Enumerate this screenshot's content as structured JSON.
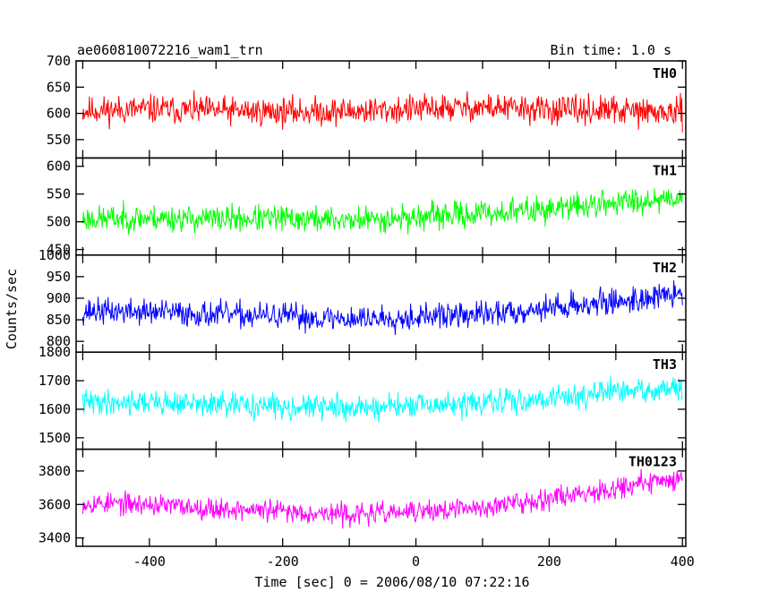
{
  "chart_data": {
    "type": "line",
    "title": "ae060810072216_wam1_trn",
    "bin_time": "Bin time: 1.0 s",
    "ylabel": "Counts/sec",
    "xlabel": "Time [sec] 0 = 2006/08/10 07:22:16",
    "xlim": [
      -510,
      405
    ],
    "x_ticks": [
      -400,
      -200,
      0,
      200,
      400
    ],
    "x_step": 1,
    "grid": false,
    "panels": [
      {
        "name": "TH0",
        "color": "#ff0000",
        "ylim": [
          515,
          700
        ],
        "y_ticks": [
          550,
          600,
          650,
          700
        ],
        "x_start": -500,
        "x_end": 400,
        "anchors_x": [
          -500,
          -400,
          -300,
          -200,
          -100,
          0,
          100,
          200,
          300,
          400
        ],
        "anchors_y": [
          605,
          608,
          605,
          603,
          604,
          608,
          612,
          606,
          605,
          600
        ],
        "noise": 25,
        "seed": 11
      },
      {
        "name": "TH1",
        "color": "#00ff00",
        "ylim": [
          440,
          615
        ],
        "y_ticks": [
          450,
          500,
          550,
          600
        ],
        "x_start": -500,
        "x_end": 400,
        "anchors_x": [
          -500,
          -400,
          -300,
          -200,
          -100,
          0,
          100,
          200,
          300,
          400
        ],
        "anchors_y": [
          505,
          507,
          505,
          506,
          503,
          508,
          515,
          523,
          535,
          545
        ],
        "noise": 22,
        "seed": 23
      },
      {
        "name": "TH2",
        "color": "#0000ff",
        "ylim": [
          775,
          1000
        ],
        "y_ticks": [
          800,
          850,
          900,
          950,
          1000
        ],
        "x_start": -500,
        "x_end": 400,
        "anchors_x": [
          -500,
          -400,
          -300,
          -200,
          -100,
          0,
          100,
          200,
          300,
          400
        ],
        "anchors_y": [
          870,
          868,
          862,
          858,
          852,
          857,
          862,
          878,
          892,
          910
        ],
        "noise": 28,
        "seed": 37
      },
      {
        "name": "TH3",
        "color": "#00ffff",
        "ylim": [
          1460,
          1800
        ],
        "y_ticks": [
          1500,
          1600,
          1700,
          1800
        ],
        "x_start": -500,
        "x_end": 400,
        "anchors_x": [
          -500,
          -400,
          -300,
          -200,
          -100,
          0,
          100,
          200,
          300,
          400
        ],
        "anchors_y": [
          1625,
          1625,
          1615,
          1610,
          1605,
          1610,
          1620,
          1640,
          1660,
          1670
        ],
        "noise": 40,
        "seed": 41
      },
      {
        "name": "TH0123",
        "color": "#ff00ff",
        "ylim": [
          3350,
          3930
        ],
        "y_ticks": [
          3400,
          3600,
          3800
        ],
        "x_start": -500,
        "x_end": 400,
        "anchors_x": [
          -500,
          -400,
          -300,
          -200,
          -100,
          0,
          100,
          200,
          300,
          400
        ],
        "anchors_y": [
          3610,
          3600,
          3575,
          3560,
          3540,
          3555,
          3580,
          3640,
          3700,
          3760
        ],
        "noise": 60,
        "seed": 53
      }
    ]
  }
}
